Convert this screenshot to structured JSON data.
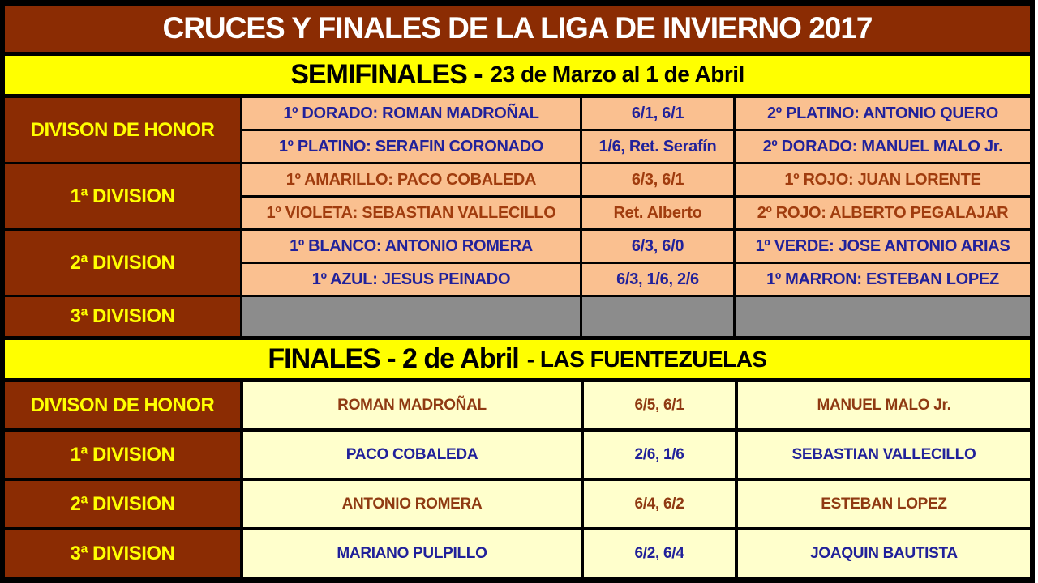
{
  "title": "CRUCES Y FINALES DE LA LIGA DE INVIERNO 2017",
  "semifinals": {
    "heading": "SEMIFINALES -",
    "heading_dates": "23 de Marzo al 1 de Abril",
    "groups": [
      {
        "division": "DIVISON DE HONOR",
        "rows": [
          {
            "player1": "1º DORADO: ROMAN MADROÑAL",
            "score": "6/1, 6/1",
            "player2": "2º PLATINO: ANTONIO QUERO"
          },
          {
            "player1": "1º PLATINO: SERAFIN CORONADO",
            "score": "1/6, Ret. Serafín",
            "player2": "2º DORADO: MANUEL MALO Jr."
          }
        ]
      },
      {
        "division": "1ª DIVISION",
        "rows": [
          {
            "player1": "1º AMARILLO: PACO COBALEDA",
            "score": "6/3, 6/1",
            "player2": "1º ROJO: JUAN LORENTE"
          },
          {
            "player1": "1º VIOLETA: SEBASTIAN VALLECILLO",
            "score": "Ret. Alberto",
            "player2": "2º ROJO: ALBERTO PEGALAJAR"
          }
        ]
      },
      {
        "division": "2ª DIVISION",
        "rows": [
          {
            "player1": "1º BLANCO: ANTONIO ROMERA",
            "score": "6/3, 6/0",
            "player2": "1º VERDE: JOSE ANTONIO ARIAS"
          },
          {
            "player1": "1º AZUL: JESUS PEINADO",
            "score": "6/3, 1/6, 2/6",
            "player2": "1º MARRON: ESTEBAN LOPEZ"
          }
        ]
      },
      {
        "division": "3ª DIVISION",
        "rows": []
      }
    ]
  },
  "finals": {
    "heading": "FINALES - 2 de Abril",
    "heading_venue": "- LAS FUENTEZUELAS",
    "rows": [
      {
        "division": "DIVISON DE HONOR",
        "player1": "ROMAN MADROÑAL",
        "score": "6/5, 6/1",
        "player2": "MANUEL MALO Jr."
      },
      {
        "division": "1ª DIVISION",
        "player1": "PACO COBALEDA",
        "score": "2/6, 1/6",
        "player2": "SEBASTIAN VALLECILLO"
      },
      {
        "division": "2ª DIVISION",
        "player1": "ANTONIO ROMERA",
        "score": "6/4, 6/2",
        "player2": "ESTEBAN LOPEZ"
      },
      {
        "division": "3ª DIVISION",
        "player1": "MARIANO PULPILLO",
        "score": "6/2, 6/4",
        "player2": "JOAQUIN BAUTISTA"
      }
    ]
  },
  "colors": {
    "header_bg": "#8B2C03",
    "banner_bg": "#FFFF00",
    "division_label_text": "#FFFF00",
    "semifinal_cell_bg": "#FAC090",
    "final_cell_bg": "#FFFFCC",
    "empty_cell_bg": "#8C8C8C",
    "blue_text": "#21219A",
    "brown_text": "#A03C0E",
    "brown_text_dark": "#8F3A12",
    "border": "#000000",
    "title_text": "#FFFFFF"
  }
}
